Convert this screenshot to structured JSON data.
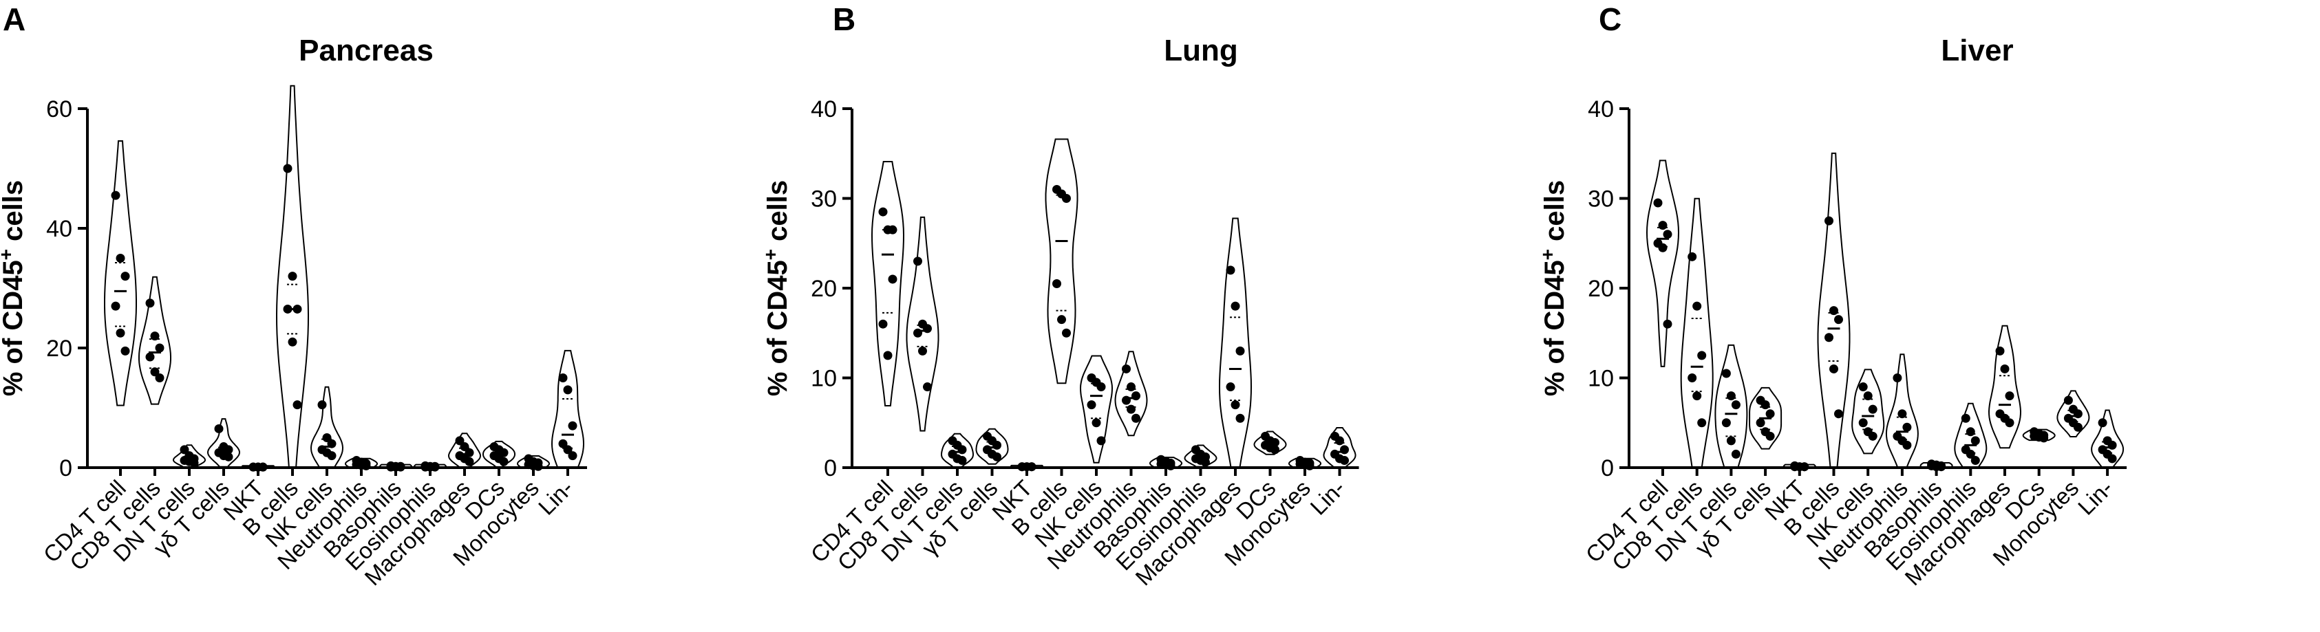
{
  "chart_data": [
    {
      "type": "violin",
      "panel": "A",
      "title": "Pancreas",
      "ylabel_prefix": "% of CD45",
      "ylabel_sup": "+",
      "ylabel_suffix": " cells",
      "ylim": [
        0,
        60
      ],
      "yticks": [
        0,
        20,
        40,
        60
      ],
      "categories": [
        "CD4 T cell",
        "CD8 T cells",
        "DN T cells",
        "γδ T cells",
        "NKT",
        "B cells",
        "NK cells",
        "Neutrophils",
        "Basophils",
        "Eosinophils",
        "Macrophages",
        "DCs",
        "Monocytes",
        "Lin-"
      ],
      "points": [
        [
          45.5,
          35,
          32,
          27,
          22.5,
          19.5
        ],
        [
          27.5,
          22,
          20,
          18.5,
          16,
          15
        ],
        [
          3,
          2,
          1.5,
          1.2,
          1,
          0.8
        ],
        [
          6.5,
          3.5,
          3,
          2.5,
          2,
          1.8
        ],
        [
          0.1,
          0.1,
          0.1,
          0.1,
          0.1,
          0.1
        ],
        [
          50,
          32,
          26.5,
          26.5,
          21,
          10.5
        ],
        [
          10.5,
          5,
          4,
          3,
          2.5,
          2
        ],
        [
          1.2,
          0.9,
          0.7,
          0.5,
          0.4,
          0.3
        ],
        [
          0.3,
          0.2,
          0.2,
          0.1,
          0.1,
          0.1
        ],
        [
          0.3,
          0.2,
          0.2,
          0.1,
          0.1,
          0.1
        ],
        [
          4.5,
          3.5,
          2.5,
          2,
          1.5,
          1
        ],
        [
          3.5,
          3,
          2.5,
          2,
          1.5,
          1
        ],
        [
          1.5,
          1,
          0.8,
          0.5,
          0.3,
          0.2
        ],
        [
          15,
          13,
          7,
          4,
          3,
          2
        ]
      ]
    },
    {
      "type": "violin",
      "panel": "B",
      "title": "Lung",
      "ylabel_prefix": "% of CD45",
      "ylabel_sup": "+",
      "ylabel_suffix": " cells",
      "ylim": [
        0,
        40
      ],
      "yticks": [
        0,
        10,
        20,
        30,
        40
      ],
      "categories": [
        "CD4 T cell",
        "CD8 T cells",
        "DN T cells",
        "γδ T cells",
        "NKT",
        "B cells",
        "NK cells",
        "Neutrophils",
        "Basophils",
        "Eosinophils",
        "Macrophages",
        "DCs",
        "Monocytes",
        "Lin-"
      ],
      "points": [
        [
          28.5,
          26.5,
          21,
          16,
          12.5,
          26.5
        ],
        [
          23,
          16,
          15.5,
          15,
          13,
          9
        ],
        [
          3,
          2.5,
          2,
          1.5,
          1,
          0.8
        ],
        [
          3.5,
          3,
          2.5,
          2,
          1.5,
          1.2
        ],
        [
          0.1,
          0.1,
          0.1,
          0.1,
          0.1,
          0.1
        ],
        [
          31,
          30.5,
          30,
          20.5,
          16.5,
          15
        ],
        [
          10,
          9.5,
          9,
          7,
          5,
          3
        ],
        [
          11,
          9,
          8,
          7.5,
          6.5,
          5.5
        ],
        [
          0.9,
          0.7,
          0.5,
          0.4,
          0.3,
          0.2
        ],
        [
          2,
          1.5,
          1.2,
          1,
          0.8,
          0.6
        ],
        [
          22,
          18,
          13,
          9,
          7,
          5.5
        ],
        [
          3.5,
          3,
          2.8,
          2.5,
          2.2,
          2
        ],
        [
          0.8,
          0.6,
          0.5,
          0.4,
          0.3,
          0.2
        ],
        [
          3.5,
          3,
          2,
          1.5,
          1,
          0.8
        ]
      ]
    },
    {
      "type": "violin",
      "panel": "C",
      "title": "Liver",
      "ylabel_prefix": "% of CD45",
      "ylabel_sup": "+",
      "ylabel_suffix": " cells",
      "ylim": [
        0,
        40
      ],
      "yticks": [
        0,
        10,
        20,
        30,
        40
      ],
      "categories": [
        "CD4 T cell",
        "CD8 T cells",
        "DN T cells",
        "γδ T cells",
        "NKT",
        "B cells",
        "NK cells",
        "Neutrophils",
        "Basophils",
        "Eosinophils",
        "Macrophages",
        "DCs",
        "Monocytes",
        "Lin-"
      ],
      "points": [
        [
          29.5,
          27,
          26,
          25,
          24.5,
          16
        ],
        [
          23.5,
          18,
          12.5,
          10,
          8,
          5
        ],
        [
          10.5,
          8,
          7,
          5,
          3,
          1.5
        ],
        [
          7.5,
          7,
          6,
          5,
          4,
          3.5
        ],
        [
          0.2,
          0.1,
          0.1,
          0.1,
          0.1,
          0.1
        ],
        [
          27.5,
          17.5,
          16.5,
          14.5,
          11,
          6
        ],
        [
          9,
          8,
          6.5,
          5,
          4,
          3.5
        ],
        [
          10,
          6,
          4.5,
          3.5,
          3,
          2.5
        ],
        [
          0.4,
          0.3,
          0.2,
          0.2,
          0.1,
          0.1
        ],
        [
          5.5,
          4,
          3,
          2,
          1.5,
          0.8
        ],
        [
          13,
          11,
          8,
          6,
          5.5,
          5
        ],
        [
          4,
          3.8,
          3.6,
          3.5,
          3.4,
          3.3
        ],
        [
          7.5,
          6.5,
          6,
          5.5,
          5,
          4.5
        ],
        [
          5,
          3,
          2.5,
          2,
          1.5,
          1
        ]
      ]
    }
  ]
}
